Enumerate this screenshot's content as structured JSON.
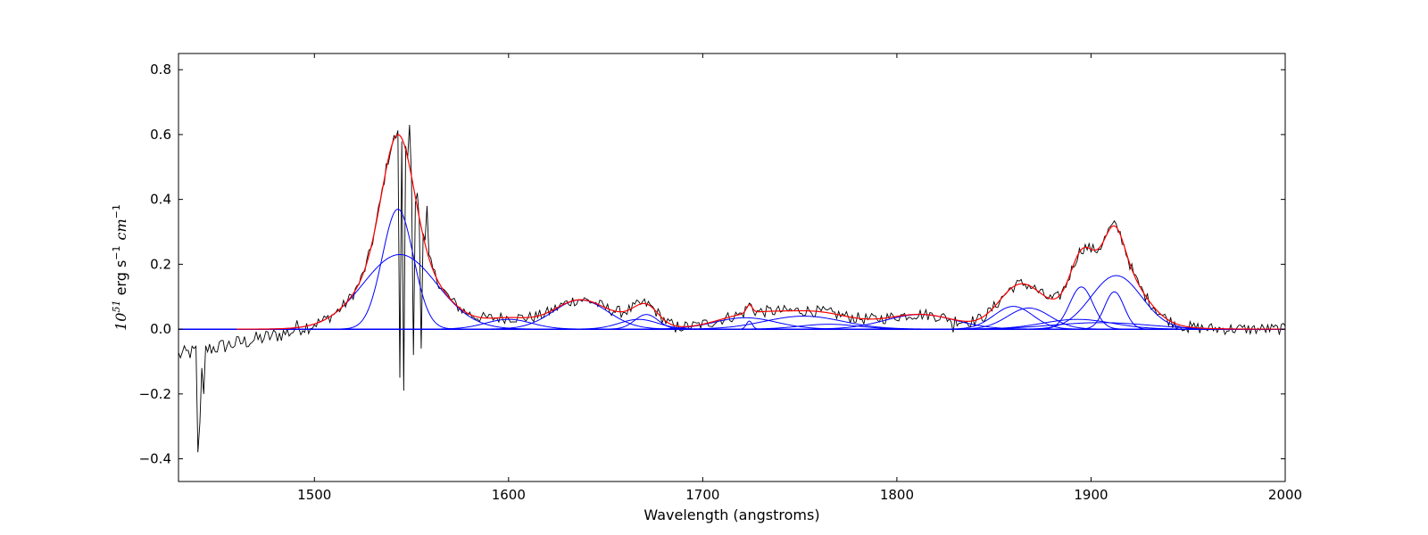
{
  "chart_data": {
    "type": "line",
    "xlabel": "Wavelength (angstroms)",
    "ylabel": {
      "base": "10",
      "base_exp": "51",
      "unit1": " erg s",
      "unit1_exp": "−1",
      "unit2": "cm",
      "unit2_exp": "−1"
    },
    "xlim": [
      1430,
      2000
    ],
    "ylim": [
      -0.47,
      0.85
    ],
    "xticks": [
      {
        "value": 1500,
        "label": "1500"
      },
      {
        "value": 1600,
        "label": "1600"
      },
      {
        "value": 1700,
        "label": "1700"
      },
      {
        "value": 1800,
        "label": "1800"
      },
      {
        "value": 1900,
        "label": "1900"
      },
      {
        "value": 2000,
        "label": "2000"
      }
    ],
    "yticks": [
      {
        "value": -0.4,
        "label": "−0.4"
      },
      {
        "value": -0.2,
        "label": "−0.2"
      },
      {
        "value": 0.0,
        "label": "0.0"
      },
      {
        "value": 0.2,
        "label": "0.2"
      },
      {
        "value": 0.4,
        "label": "0.4"
      },
      {
        "value": 0.6,
        "label": "0.6"
      },
      {
        "value": 0.8,
        "label": "0.8"
      }
    ],
    "grid": false,
    "colors": {
      "data": "#000000",
      "total_fit": "#ff0000",
      "components": "#0000ff"
    },
    "gaussian_components": [
      {
        "center": 1543,
        "amplitude": 0.37,
        "sigma": 8
      },
      {
        "center": 1544,
        "amplitude": 0.23,
        "sigma": 19
      },
      {
        "center": 1600,
        "amplitude": 0.03,
        "sigma": 12
      },
      {
        "center": 1637,
        "amplitude": 0.09,
        "sigma": 14
      },
      {
        "center": 1671,
        "amplitude": 0.045,
        "sigma": 6
      },
      {
        "center": 1667,
        "amplitude": 0.03,
        "sigma": 10
      },
      {
        "center": 1724,
        "amplitude": 0.025,
        "sigma": 1.5
      },
      {
        "center": 1722,
        "amplitude": 0.035,
        "sigma": 16
      },
      {
        "center": 1752,
        "amplitude": 0.04,
        "sigma": 20
      },
      {
        "center": 1765,
        "amplitude": 0.015,
        "sigma": 15
      },
      {
        "center": 1812,
        "amplitude": 0.045,
        "sigma": 18
      },
      {
        "center": 1860,
        "amplitude": 0.07,
        "sigma": 10
      },
      {
        "center": 1868,
        "amplitude": 0.065,
        "sigma": 11
      },
      {
        "center": 1895,
        "amplitude": 0.13,
        "sigma": 6
      },
      {
        "center": 1893,
        "amplitude": 0.03,
        "sigma": 18
      },
      {
        "center": 1912,
        "amplitude": 0.115,
        "sigma": 5
      },
      {
        "center": 1913,
        "amplitude": 0.165,
        "sigma": 13
      },
      {
        "center": 1905,
        "amplitude": 0.02,
        "sigma": 25
      }
    ],
    "observed_spectrum": {
      "x_start": 1430,
      "x_end": 2000,
      "step": 1,
      "deviations": [
        {
          "x": 1440,
          "y": -0.38
        },
        {
          "x": 1441,
          "y": -0.29
        },
        {
          "x": 1442,
          "y": -0.12
        },
        {
          "x": 1443,
          "y": -0.2
        },
        {
          "x": 1544,
          "y": -0.15
        },
        {
          "x": 1546,
          "y": -0.19
        },
        {
          "x": 1549,
          "y": 0.63
        },
        {
          "x": 1551,
          "y": -0.08
        },
        {
          "x": 1553,
          "y": 0.42
        },
        {
          "x": 1555,
          "y": -0.06
        },
        {
          "x": 1558,
          "y": 0.38
        },
        {
          "x": 1686,
          "y": -0.01
        },
        {
          "x": 1829,
          "y": -0.01
        },
        {
          "x": 1950,
          "y": -0.01
        }
      ]
    }
  }
}
